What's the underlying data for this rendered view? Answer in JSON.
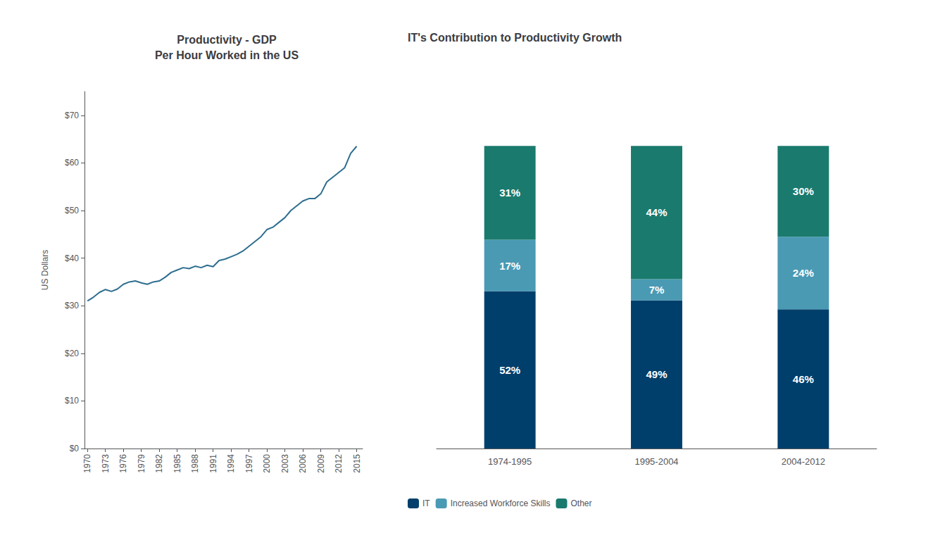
{
  "chart_data": [
    {
      "type": "line",
      "title": "Productivity - GDP\nPer Hour Worked in the US",
      "ylabel": "US Dollars",
      "x": [
        1970,
        1971,
        1972,
        1973,
        1974,
        1975,
        1976,
        1977,
        1978,
        1979,
        1980,
        1981,
        1982,
        1983,
        1984,
        1985,
        1986,
        1987,
        1988,
        1989,
        1990,
        1991,
        1992,
        1993,
        1994,
        1995,
        1996,
        1997,
        1998,
        1999,
        2000,
        2001,
        2002,
        2003,
        2004,
        2005,
        2006,
        2007,
        2008,
        2009,
        2010,
        2011,
        2012,
        2013,
        2014,
        2015
      ],
      "values": [
        31.0,
        31.8,
        32.8,
        33.4,
        33.0,
        33.5,
        34.5,
        35.0,
        35.2,
        34.8,
        34.5,
        35.0,
        35.2,
        36.0,
        37.0,
        37.5,
        38.0,
        37.8,
        38.3,
        38.0,
        38.5,
        38.2,
        39.5,
        39.8,
        40.3,
        40.8,
        41.5,
        42.5,
        43.5,
        44.5,
        46.0,
        46.5,
        47.5,
        48.5,
        50.0,
        51.0,
        52.0,
        52.5,
        52.5,
        53.5,
        56.0,
        57.0,
        58.0,
        59.0,
        62.0,
        63.5
      ],
      "color": "#2e6e8e",
      "xlim": [
        1969.5,
        2016
      ],
      "xticks": [
        1970,
        1973,
        1976,
        1979,
        1982,
        1985,
        1988,
        1991,
        1994,
        1997,
        2000,
        2003,
        2006,
        2009,
        2012,
        2015
      ],
      "ylim": [
        0,
        75
      ],
      "yticks": [
        {
          "value": 0,
          "label": "$0"
        },
        {
          "value": 10,
          "label": "$10"
        },
        {
          "value": 20,
          "label": "$20"
        },
        {
          "value": 30,
          "label": "$30"
        },
        {
          "value": 40,
          "label": "$40"
        },
        {
          "value": 50,
          "label": "$50"
        },
        {
          "value": 60,
          "label": "$60"
        },
        {
          "value": 70,
          "label": "$70"
        }
      ],
      "grid": false
    },
    {
      "type": "bar",
      "title": "IT's Contribution to Productivity Growth",
      "categories": [
        "1974-1995",
        "1995-2004",
        "2004-2012"
      ],
      "series": [
        {
          "name": "IT",
          "color": "#003f6b",
          "values": [
            52,
            49,
            46
          ],
          "value_labels": [
            "52%",
            "49%",
            "46%"
          ]
        },
        {
          "name": "Increased Workforce Skills",
          "color": "#4a9ab4",
          "values": [
            17,
            7,
            24
          ],
          "value_labels": [
            "17%",
            "7%",
            "24%"
          ]
        },
        {
          "name": "Other",
          "color": "#1a7a6e",
          "values": [
            31,
            44,
            30
          ],
          "value_labels": [
            "31%",
            "44%",
            "30%"
          ]
        }
      ],
      "stacked": true,
      "data_labels": true,
      "ylim": [
        0,
        118
      ],
      "tick_labels": "x",
      "legend": "lower left",
      "grid": false
    }
  ]
}
